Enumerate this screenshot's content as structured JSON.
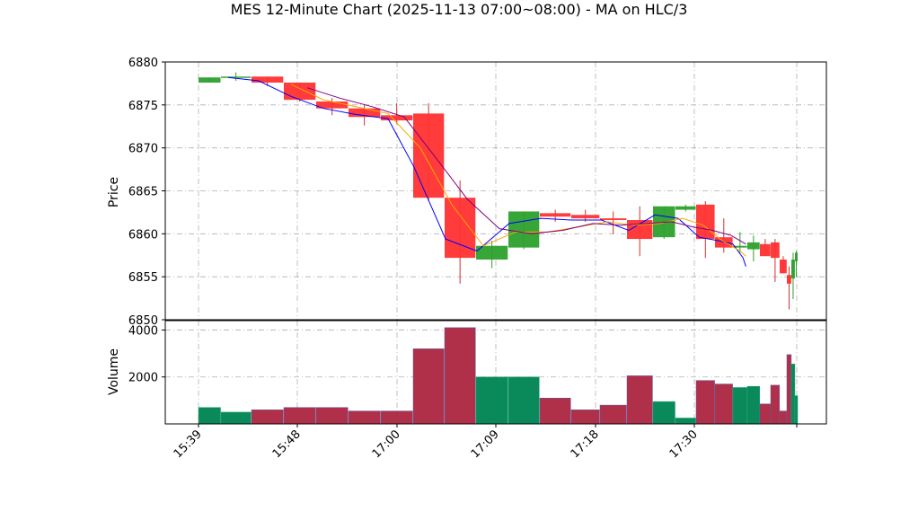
{
  "chart_data": {
    "type": "candlestick",
    "title": "MES 12-Minute Chart (2025-11-13 07:00~08:00) - MA on HLC/3",
    "x_tick_labels": [
      "15:39",
      "15:48",
      "17:00",
      "17:09",
      "17:18",
      "17:30"
    ],
    "price_panel": {
      "ylabel": "Price",
      "ylim": [
        6850,
        6880
      ],
      "yticks": [
        6850,
        6855,
        6860,
        6865,
        6870,
        6875,
        6880
      ],
      "grid": true,
      "candles": [
        {
          "time": "15:39",
          "open": 6877.6,
          "high": 6878.2,
          "low": 6877.6,
          "close": 6878.2,
          "volume": 700
        },
        {
          "time": "15:42",
          "open": 6878.3,
          "high": 6878.8,
          "low": 6877.8,
          "close": 6878.3,
          "volume": 500
        },
        {
          "time": "15:45",
          "open": 6878.3,
          "high": 6878.3,
          "low": 6877.2,
          "close": 6877.6,
          "volume": 600
        },
        {
          "time": "15:48",
          "open": 6877.6,
          "high": 6877.6,
          "low": 6875.4,
          "close": 6875.6,
          "volume": 700
        },
        {
          "time": "15:51",
          "open": 6875.4,
          "high": 6875.8,
          "low": 6873.8,
          "close": 6874.6,
          "volume": 700
        },
        {
          "time": "15:54",
          "open": 6874.6,
          "high": 6875.0,
          "low": 6872.6,
          "close": 6873.6,
          "volume": 550
        },
        {
          "time": "15:57",
          "open": 6873.8,
          "high": 6875.2,
          "low": 6872.8,
          "close": 6873.2,
          "volume": 550
        },
        {
          "time": "17:00",
          "open": 6874.0,
          "high": 6875.2,
          "low": 6863.8,
          "close": 6864.2,
          "volume": 3200
        },
        {
          "time": "17:03",
          "open": 6864.2,
          "high": 6866.2,
          "low": 6854.2,
          "close": 6857.2,
          "volume": 4100
        },
        {
          "time": "17:06",
          "open": 6857.0,
          "high": 6859.2,
          "low": 6856.0,
          "close": 6858.6,
          "volume": 2000
        },
        {
          "time": "17:09",
          "open": 6858.4,
          "high": 6862.6,
          "low": 6858.2,
          "close": 6862.6,
          "volume": 2000
        },
        {
          "time": "17:12",
          "open": 6862.4,
          "high": 6862.8,
          "low": 6861.4,
          "close": 6862.0,
          "volume": 1100
        },
        {
          "time": "17:15",
          "open": 6862.2,
          "high": 6862.8,
          "low": 6861.4,
          "close": 6861.8,
          "volume": 600
        },
        {
          "time": "17:18",
          "open": 6861.8,
          "high": 6862.6,
          "low": 6860.0,
          "close": 6861.6,
          "volume": 800
        },
        {
          "time": "17:21",
          "open": 6861.6,
          "high": 6863.2,
          "low": 6857.4,
          "close": 6859.4,
          "volume": 2050
        },
        {
          "time": "17:24",
          "open": 6859.6,
          "high": 6863.2,
          "low": 6859.4,
          "close": 6863.2,
          "volume": 950
        },
        {
          "time": "17:27",
          "open": 6862.8,
          "high": 6863.4,
          "low": 6862.6,
          "close": 6863.2,
          "volume": 250
        },
        {
          "time": "17:30",
          "open": 6863.4,
          "high": 6863.8,
          "low": 6857.2,
          "close": 6859.4,
          "volume": 1850
        },
        {
          "time": "17:33",
          "open": 6859.6,
          "high": 6861.8,
          "low": 6857.8,
          "close": 6858.4,
          "volume": 1700
        },
        {
          "time": "17:36",
          "open": 6858.4,
          "high": 6860.2,
          "low": 6857.8,
          "close": 6858.6,
          "volume": 1550
        },
        {
          "time": "17:39",
          "open": 6858.2,
          "high": 6859.8,
          "low": 6856.8,
          "close": 6859.0,
          "volume": 1600
        },
        {
          "time": "17:41",
          "open": 6858.8,
          "high": 6859.4,
          "low": 6857.4,
          "close": 6857.4,
          "volume": 850
        },
        {
          "time": "17:43",
          "open": 6859.0,
          "high": 6859.4,
          "low": 6854.4,
          "close": 6857.2,
          "volume": 1650
        },
        {
          "time": "17:45",
          "open": 6857.0,
          "high": 6857.4,
          "low": 6855.4,
          "close": 6855.4,
          "volume": 550
        },
        {
          "time": "17:46",
          "open": 6855.2,
          "high": 6856.2,
          "low": 6851.2,
          "close": 6854.2,
          "volume": 2950
        },
        {
          "time": "17:47",
          "open": 6854.8,
          "high": 6857.8,
          "low": 6852.4,
          "close": 6857.0,
          "volume": 2550
        },
        {
          "time": "17:48",
          "open": 6856.8,
          "high": 6858.0,
          "low": 6855.0,
          "close": 6857.8,
          "volume": 1200
        }
      ]
    },
    "volume_panel": {
      "ylabel": "Volume",
      "ylim": [
        0,
        4400
      ],
      "yticks": [
        2000,
        4000
      ]
    },
    "moving_averages": [
      {
        "color": "#0000ff",
        "points": [
          [
            1,
            6878.2
          ],
          [
            2,
            6877.8
          ],
          [
            3,
            6876.0
          ],
          [
            4,
            6874.6
          ],
          [
            5,
            6873.9
          ],
          [
            6,
            6873.4
          ],
          [
            6.8,
            6867.8
          ],
          [
            7.8,
            6859.4
          ],
          [
            8.8,
            6858.0
          ],
          [
            9.8,
            6861.2
          ],
          [
            10.8,
            6861.8
          ],
          [
            11.8,
            6861.6
          ],
          [
            12.8,
            6861.6
          ],
          [
            13.8,
            6860.4
          ],
          [
            14.8,
            6862.2
          ],
          [
            15.8,
            6861.8
          ],
          [
            16.8,
            6859.6
          ],
          [
            17.8,
            6859.2
          ],
          [
            18.6,
            6858.8
          ],
          [
            19.2,
            6857.2
          ],
          [
            19.4,
            6856.2
          ]
        ]
      },
      {
        "color": "#ffa500",
        "points": [
          [
            3,
            6877.4
          ],
          [
            4,
            6875.6
          ],
          [
            5,
            6874.8
          ],
          [
            6,
            6874.0
          ],
          [
            7,
            6870.0
          ],
          [
            8,
            6863.4
          ],
          [
            9,
            6858.6
          ],
          [
            10,
            6860.2
          ],
          [
            11,
            6860.2
          ],
          [
            12,
            6860.8
          ],
          [
            13,
            6861.4
          ],
          [
            14,
            6861.0
          ],
          [
            15,
            6861.2
          ],
          [
            16,
            6861.8
          ],
          [
            17,
            6861.0
          ],
          [
            18,
            6859.2
          ],
          [
            19,
            6858.0
          ],
          [
            19.4,
            6857.4
          ]
        ]
      },
      {
        "color": "#800080",
        "points": [
          [
            3.5,
            6877.0
          ],
          [
            4.5,
            6875.8
          ],
          [
            5.5,
            6874.8
          ],
          [
            6.5,
            6873.6
          ],
          [
            7.5,
            6868.8
          ],
          [
            8.5,
            6864.0
          ],
          [
            9.5,
            6860.6
          ],
          [
            10.5,
            6860.0
          ],
          [
            11.5,
            6860.4
          ],
          [
            12.5,
            6861.2
          ],
          [
            13.5,
            6861.0
          ],
          [
            14.5,
            6861.2
          ],
          [
            15.5,
            6861.4
          ],
          [
            16.5,
            6860.8
          ],
          [
            17.5,
            6860.4
          ],
          [
            18.5,
            6859.8
          ],
          [
            19.4,
            6858.8
          ]
        ]
      }
    ]
  }
}
